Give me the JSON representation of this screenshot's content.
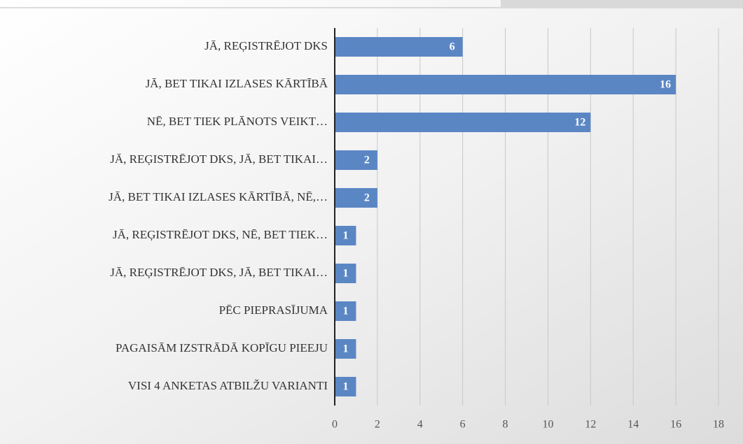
{
  "chart_data": {
    "type": "bar",
    "orientation": "horizontal",
    "categories": [
      "JĀ, REĢISTRĒJOT DKS",
      "JĀ, BET TIKAI IZLASES KĀRTĪBĀ",
      "NĒ, BET TIEK PLĀNOTS VEIKT…",
      "JĀ, REĢISTRĒJOT DKS, JĀ, BET TIKAI…",
      "JĀ, BET TIKAI IZLASES KĀRTĪBĀ, NĒ,…",
      "JĀ, REĢISTRĒJOT DKS, NĒ, BET TIEK…",
      "JĀ, REĢISTRĒJOT DKS, JĀ, BET TIKAI…",
      "PĒC PIEPRASĪJUMA",
      "PAGAISĀM IZSTRĀDĀ KOPĪGU PIEEJU",
      "VISI 4 ANKETAS ATBILŽU VARIANTI"
    ],
    "values": [
      6,
      16,
      12,
      2,
      2,
      1,
      1,
      1,
      1,
      1
    ],
    "color": "#5b86c4",
    "xlim": [
      0,
      18
    ],
    "xticks": [
      0,
      2,
      4,
      6,
      8,
      10,
      12,
      14,
      16,
      18
    ],
    "grid": true
  }
}
